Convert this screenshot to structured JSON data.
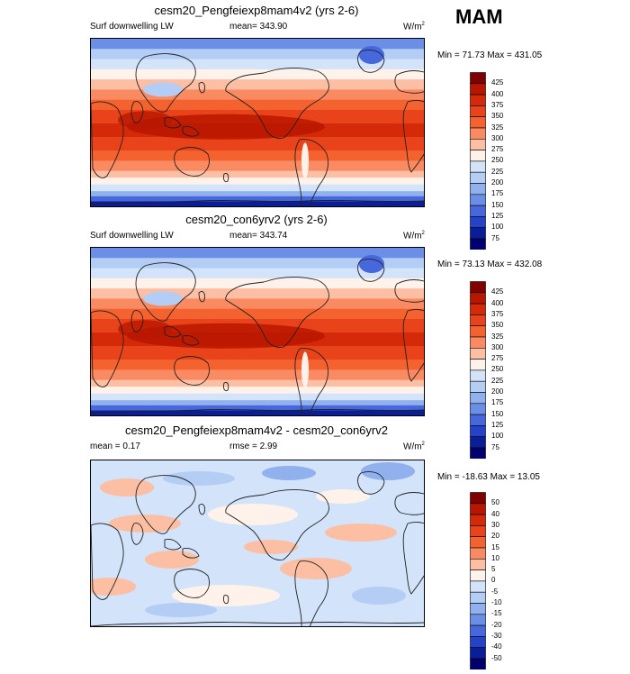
{
  "season": "MAM",
  "panels": [
    {
      "title": "cesm20_Pengfeiexp8mam4v2 (yrs 2-6)",
      "left_label": "Surf downwelling LW",
      "center_label": "mean= 343.90",
      "units": "W/m",
      "units_sup": "2",
      "minmax": "Min = 71.73 Max = 431.05",
      "levels": [
        "425",
        "400",
        "375",
        "350",
        "325",
        "300",
        "275",
        "250",
        "225",
        "200",
        "175",
        "150",
        "125",
        "100",
        "75"
      ],
      "colors": [
        "#800000",
        "#b81600",
        "#d52a0a",
        "#e8431a",
        "#f4622f",
        "#fa8a62",
        "#fdbfa4",
        "#fff2ea",
        "#d2e3fa",
        "#b3cdf5",
        "#90b0ee",
        "#6b8fe6",
        "#4668dc",
        "#2443c8",
        "#0b1e9a",
        "#00006e"
      ]
    },
    {
      "title": "cesm20_con6yrv2 (yrs 2-6)",
      "left_label": "Surf downwelling LW",
      "center_label": "mean= 343.74",
      "units": "W/m",
      "units_sup": "2",
      "minmax": "Min = 73.13 Max = 432.08",
      "levels": [
        "425",
        "400",
        "375",
        "350",
        "325",
        "300",
        "275",
        "250",
        "225",
        "200",
        "175",
        "150",
        "125",
        "100",
        "75"
      ],
      "colors": [
        "#800000",
        "#b81600",
        "#d52a0a",
        "#e8431a",
        "#f4622f",
        "#fa8a62",
        "#fdbfa4",
        "#fff2ea",
        "#d2e3fa",
        "#b3cdf5",
        "#90b0ee",
        "#6b8fe6",
        "#4668dc",
        "#2443c8",
        "#0b1e9a",
        "#00006e"
      ]
    },
    {
      "title": "cesm20_Pengfeiexp8mam4v2 - cesm20_con6yrv2",
      "left_label": "mean = 0.17",
      "center_label": "rmse = 2.99",
      "units": "W/m",
      "units_sup": "2",
      "minmax": "Min = -18.63 Max = 13.05",
      "levels": [
        "50",
        "40",
        "30",
        "20",
        "15",
        "10",
        "5",
        "0",
        "-5",
        "-10",
        "-15",
        "-20",
        "-30",
        "-40",
        "-50"
      ],
      "colors": [
        "#800000",
        "#b81600",
        "#d52a0a",
        "#e8431a",
        "#f4622f",
        "#fa8a62",
        "#fdbfa4",
        "#fff2ea",
        "#d2e3fa",
        "#b3cdf5",
        "#90b0ee",
        "#6b8fe6",
        "#4668dc",
        "#2443c8",
        "#0b1e9a",
        "#00006e"
      ]
    }
  ],
  "chart_data": [
    {
      "type": "heatmap",
      "title": "cesm20_Pengfeiexp8mam4v2 (yrs 2-6)",
      "variable": "Surf downwelling LW",
      "mean": 343.9,
      "min": 71.73,
      "max": 431.05,
      "contour_levels": [
        75,
        100,
        125,
        150,
        175,
        200,
        225,
        250,
        275,
        300,
        325,
        350,
        375,
        400,
        425
      ]
    },
    {
      "type": "heatmap",
      "title": "cesm20_con6yrv2 (yrs 2-6)",
      "variable": "Surf downwelling LW",
      "mean": 343.74,
      "min": 73.13,
      "max": 432.08,
      "contour_levels": [
        75,
        100,
        125,
        150,
        175,
        200,
        225,
        250,
        275,
        300,
        325,
        350,
        375,
        400,
        425
      ]
    },
    {
      "type": "heatmap",
      "title": "cesm20_Pengfeiexp8mam4v2 - cesm20_con6yrv2",
      "mean": 0.17,
      "rmse": 2.99,
      "min": -18.63,
      "max": 13.05,
      "contour_levels": [
        -50,
        -40,
        -30,
        -20,
        -15,
        -10,
        -5,
        0,
        5,
        10,
        15,
        20,
        30,
        40,
        50
      ]
    }
  ]
}
